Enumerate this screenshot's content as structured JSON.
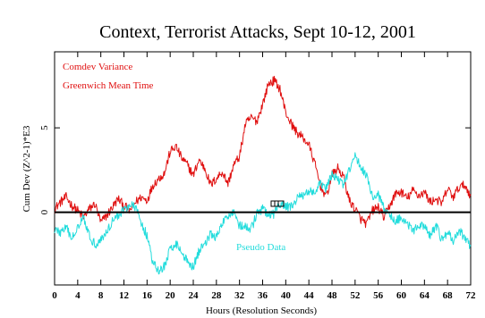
{
  "chart_data": {
    "type": "line",
    "title": "Context, Terrorist Attacks, Sept 10-12, 2001",
    "xlabel": "Hours (Resolution Seconds)",
    "ylabel": "Cum Dev (Z^2-1)*E3",
    "xlim": [
      0,
      72
    ],
    "ylim": [
      -4.3,
      9.5
    ],
    "x_ticks": [
      0,
      4,
      8,
      12,
      16,
      20,
      24,
      28,
      32,
      36,
      40,
      44,
      48,
      52,
      56,
      60,
      64,
      68,
      72
    ],
    "y_ticks": [
      0,
      5
    ],
    "grid": false,
    "legend_position": "top-left",
    "legend": [
      "Comdev Variance",
      "Greenwich Mean Time"
    ],
    "annotation": "Pseudo Data",
    "colors": {
      "comdev": "#e01010",
      "pseudo": "#22dcdc",
      "axis": "#000000",
      "frame": "#000000"
    },
    "series": [
      {
        "name": "Comdev Variance",
        "color": "#e01010",
        "x": [
          0,
          1,
          2,
          3,
          4,
          5,
          6,
          7,
          8,
          9,
          10,
          11,
          12,
          13,
          14,
          15,
          16,
          17,
          18,
          19,
          20,
          21,
          22,
          23,
          24,
          25,
          26,
          27,
          28,
          29,
          30,
          31,
          32,
          33,
          34,
          35,
          36,
          37,
          38,
          39,
          40,
          41,
          42,
          43,
          44,
          45,
          46,
          47,
          48,
          49,
          50,
          51,
          52,
          53,
          54,
          55,
          56,
          57,
          58,
          59,
          60,
          61,
          62,
          63,
          64,
          65,
          66,
          67,
          68,
          69,
          70,
          71,
          72
        ],
        "y": [
          0.2,
          0.6,
          0.9,
          0.4,
          0.1,
          -0.3,
          0.2,
          0.5,
          -0.6,
          -0.2,
          0.3,
          0.8,
          0.4,
          0.1,
          0.6,
          0.9,
          0.7,
          1.6,
          2.0,
          2.3,
          3.6,
          3.9,
          3.2,
          2.8,
          2.2,
          3.1,
          2.6,
          1.6,
          2.0,
          2.4,
          1.7,
          2.8,
          3.3,
          5.2,
          5.6,
          5.4,
          6.4,
          7.6,
          7.8,
          7.3,
          5.9,
          5.2,
          4.7,
          4.4,
          4.0,
          2.9,
          1.6,
          0.9,
          2.2,
          2.6,
          2.1,
          0.7,
          0.2,
          -0.4,
          -0.7,
          0.1,
          0.3,
          -0.3,
          0.4,
          1.1,
          1.2,
          0.8,
          1.3,
          1.0,
          1.2,
          0.6,
          0.8,
          0.5,
          1.4,
          0.9,
          1.5,
          1.6,
          1.0
        ]
      },
      {
        "name": "Pseudo Data",
        "color": "#22dcdc",
        "x": [
          0,
          1,
          2,
          3,
          4,
          5,
          6,
          7,
          8,
          9,
          10,
          11,
          12,
          13,
          14,
          15,
          16,
          17,
          18,
          19,
          20,
          21,
          22,
          23,
          24,
          25,
          26,
          27,
          28,
          29,
          30,
          31,
          32,
          33,
          34,
          35,
          36,
          37,
          38,
          39,
          40,
          41,
          42,
          43,
          44,
          45,
          46,
          47,
          48,
          49,
          50,
          51,
          52,
          53,
          54,
          55,
          56,
          57,
          58,
          59,
          60,
          61,
          62,
          63,
          64,
          65,
          66,
          67,
          68,
          69,
          70,
          71,
          72
        ],
        "y": [
          -1.0,
          -1.2,
          -0.9,
          -1.6,
          -0.8,
          -0.2,
          -1.4,
          -1.9,
          -1.6,
          -1.2,
          -0.5,
          -0.2,
          0.2,
          0.4,
          0.3,
          -0.6,
          -1.4,
          -3.0,
          -3.5,
          -3.2,
          -2.2,
          -1.8,
          -2.4,
          -2.9,
          -3.2,
          -2.3,
          -1.8,
          -1.3,
          -1.5,
          -0.7,
          -0.2,
          0.1,
          -0.8,
          -0.9,
          -1.0,
          -0.1,
          0.2,
          -0.2,
          -0.1,
          0.5,
          0.3,
          0.4,
          0.8,
          1.0,
          1.3,
          1.1,
          1.7,
          1.4,
          2.2,
          2.0,
          1.6,
          2.5,
          3.3,
          2.7,
          2.2,
          0.9,
          1.0,
          0.2,
          -0.2,
          -0.5,
          -0.3,
          -0.6,
          -1.2,
          -0.7,
          -0.9,
          -1.4,
          -0.8,
          -1.6,
          -1.2,
          -1.7,
          -1.1,
          -1.5,
          -2.0
        ]
      }
    ]
  }
}
